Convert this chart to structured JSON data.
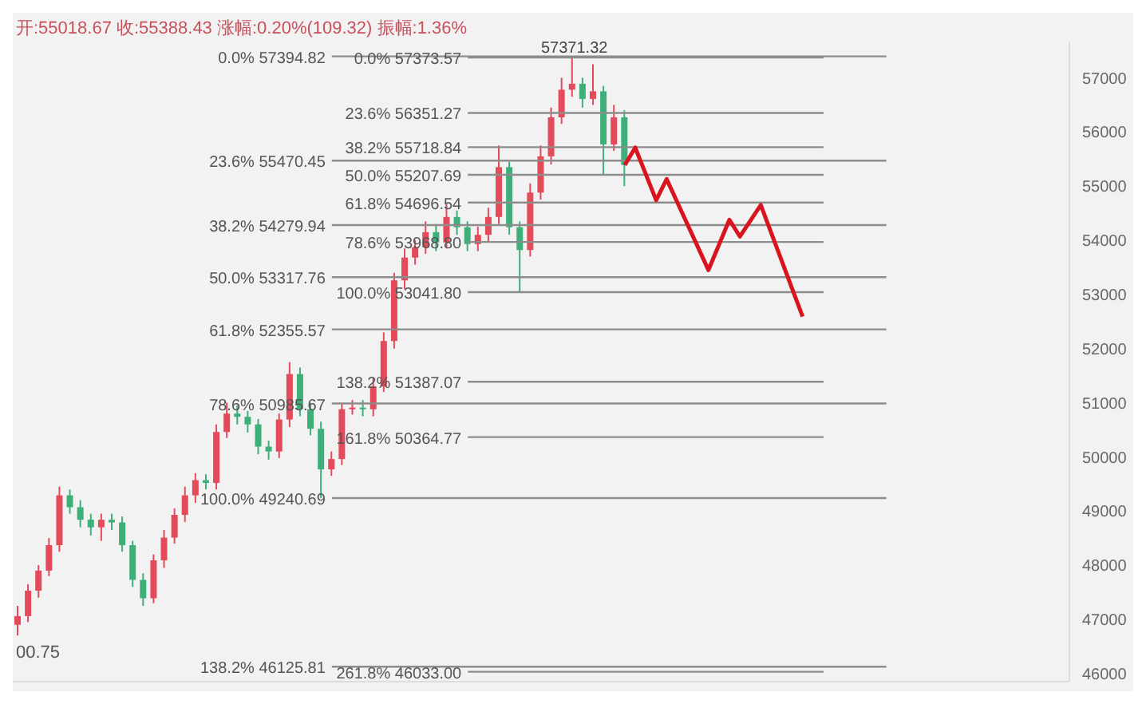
{
  "chart_data": {
    "type": "candlestick",
    "annotations": [
      "开:55018.67 收:55388.43 涨幅:0.20%(109.32) 振幅:1.36%",
      {
        "text": "57371.32",
        "y": 57371.32
      },
      "00.75"
    ],
    "categories": [
      null,
      null,
      null,
      null,
      null,
      null,
      null,
      null,
      null,
      null,
      null,
      null,
      null,
      null,
      null,
      null,
      null,
      null,
      null,
      null,
      null,
      null,
      null,
      null,
      null,
      null,
      null,
      null,
      null,
      null,
      null,
      null,
      null,
      null,
      null,
      null,
      null,
      null,
      null,
      null,
      null,
      null,
      null,
      null,
      null,
      null,
      null,
      null,
      null,
      null,
      null,
      null,
      null,
      null,
      null,
      null,
      null,
      null,
      null,
      null,
      null,
      null,
      null,
      null,
      null,
      null,
      null,
      null,
      null,
      null,
      null,
      null,
      null,
      null,
      null,
      null,
      null,
      null,
      null,
      null,
      null,
      null,
      null,
      null,
      null,
      null,
      null,
      null,
      null,
      null,
      null,
      null,
      null,
      null,
      null,
      null,
      null,
      null,
      null,
      null,
      null
    ],
    "ohlc": [
      [
        46900,
        47250,
        46700,
        47060
      ],
      [
        47060,
        47650,
        46950,
        47530
      ],
      [
        47530,
        48000,
        47400,
        47900
      ],
      [
        47900,
        48500,
        47800,
        48370
      ],
      [
        48370,
        49450,
        48250,
        49290
      ],
      [
        49290,
        49400,
        48950,
        49070
      ],
      [
        49070,
        49200,
        48700,
        48840
      ],
      [
        48840,
        48950,
        48550,
        48700
      ],
      [
        48700,
        48950,
        48450,
        48840
      ],
      [
        48840,
        48950,
        48650,
        48790
      ],
      [
        48790,
        48900,
        48250,
        48370
      ],
      [
        48370,
        48450,
        47600,
        47730
      ],
      [
        47730,
        47850,
        47250,
        47390
      ],
      [
        47390,
        48200,
        47300,
        48090
      ],
      [
        48090,
        48650,
        47950,
        48510
      ],
      [
        48510,
        49050,
        48400,
        48930
      ],
      [
        48930,
        49450,
        48800,
        49290
      ],
      [
        49290,
        49700,
        49150,
        49570
      ],
      [
        49570,
        49680,
        49400,
        49520
      ],
      [
        49520,
        50600,
        49400,
        50460
      ],
      [
        50460,
        51000,
        50350,
        50800
      ],
      [
        50800,
        50950,
        50600,
        50740
      ],
      [
        50740,
        50850,
        50450,
        50600
      ],
      [
        50600,
        50700,
        50050,
        50190
      ],
      [
        50190,
        50300,
        49950,
        50100
      ],
      [
        50100,
        50800,
        49980,
        50690
      ],
      [
        50690,
        51750,
        50550,
        51530
      ],
      [
        51530,
        51650,
        50750,
        50880
      ],
      [
        50880,
        51000,
        50400,
        50520
      ],
      [
        50520,
        50650,
        49240.69,
        49770
      ],
      [
        49770,
        50100,
        49650,
        49960
      ],
      [
        49960,
        51000,
        49850,
        50880
      ],
      [
        50880,
        51050,
        50780,
        50910
      ],
      [
        50910,
        51050,
        50750,
        50880
      ],
      [
        50880,
        51450,
        50750,
        51300
      ],
      [
        51300,
        52300,
        51200,
        52140
      ],
      [
        52140,
        53400,
        52000,
        53260
      ],
      [
        53260,
        53850,
        53100,
        53680
      ],
      [
        53680,
        54000,
        53550,
        53870
      ],
      [
        53870,
        54350,
        53750,
        54150
      ],
      [
        54150,
        54300,
        53800,
        53960
      ],
      [
        53960,
        54700,
        53850,
        54430
      ],
      [
        54430,
        54550,
        54100,
        54240
      ],
      [
        54240,
        54350,
        53800,
        53930
      ],
      [
        53930,
        54250,
        53800,
        54100
      ],
      [
        54100,
        54600,
        53980,
        54430
      ],
      [
        54430,
        55750,
        54300,
        55350
      ],
      [
        55350,
        55450,
        54100,
        54240
      ],
      [
        54240,
        54350,
        53041.8,
        53820
      ],
      [
        53820,
        55050,
        53700,
        54880
      ],
      [
        54880,
        55750,
        54750,
        55550
      ],
      [
        55550,
        56450,
        55400,
        56270
      ],
      [
        56270,
        57000,
        56150,
        56780
      ],
      [
        56780,
        57371.32,
        56650,
        56890
      ],
      [
        56890,
        57000,
        56450,
        56610
      ],
      [
        56610,
        57250,
        56500,
        56750
      ],
      [
        56750,
        56850,
        55200,
        55770
      ],
      [
        55770,
        56500,
        55650,
        56270
      ],
      [
        56270,
        56400,
        55000,
        55390
      ],
      null,
      null,
      null,
      null,
      null,
      null,
      null,
      null,
      null,
      null,
      null,
      null,
      null,
      null,
      null,
      null,
      null,
      null,
      null,
      null,
      null,
      null,
      null,
      null,
      null,
      null,
      null,
      null,
      null,
      null,
      null,
      null,
      null,
      null,
      null,
      null,
      null,
      null,
      null,
      null,
      null,
      null
    ],
    "colors": [
      "#e34a5a",
      "#e34a5a",
      "#e34a5a",
      "#e34a5a",
      "#e34a5a",
      "#3db07a",
      "#3db07a",
      "#3db07a",
      "#e34a5a",
      "#3db07a",
      "#3db07a",
      "#3db07a",
      "#3db07a",
      "#e34a5a",
      "#e34a5a",
      "#e34a5a",
      "#e34a5a",
      "#e34a5a",
      "#3db07a",
      "#e34a5a",
      "#e34a5a",
      "#3db07a",
      "#3db07a",
      "#3db07a",
      "#3db07a",
      "#e34a5a",
      "#e34a5a",
      "#3db07a",
      "#3db07a",
      "#3db07a",
      "#e34a5a",
      "#e34a5a",
      "#e34a5a",
      "#3db07a",
      "#e34a5a",
      "#e34a5a",
      "#e34a5a",
      "#e34a5a",
      "#e34a5a",
      "#e34a5a",
      "#3db07a",
      "#e34a5a",
      "#3db07a",
      "#3db07a",
      "#e34a5a",
      "#e34a5a",
      "#e34a5a",
      "#3db07a",
      "#3db07a",
      "#e34a5a",
      "#e34a5a",
      "#e34a5a",
      "#e34a5a",
      "#e34a5a",
      "#3db07a",
      "#e34a5a",
      "#3db07a",
      "#e34a5a",
      "#3db07a",
      null,
      null,
      null,
      null,
      null,
      null,
      null,
      null,
      null,
      null,
      null,
      null,
      null,
      null,
      null,
      null,
      null,
      null,
      null,
      null,
      null,
      null,
      null,
      null,
      null,
      null,
      null,
      null,
      null,
      null,
      null,
      null,
      null,
      null,
      null,
      null,
      null,
      null,
      null,
      null,
      null,
      null
    ],
    "series": [
      {
        "type": "line",
        "color": "#d9141e",
        "values": [
          null,
          null,
          null,
          null,
          null,
          null,
          null,
          null,
          null,
          null,
          null,
          null,
          null,
          null,
          null,
          null,
          null,
          null,
          null,
          null,
          null,
          null,
          null,
          null,
          null,
          null,
          null,
          null,
          null,
          null,
          null,
          null,
          null,
          null,
          null,
          null,
          null,
          null,
          null,
          null,
          null,
          null,
          null,
          null,
          null,
          null,
          null,
          null,
          null,
          null,
          null,
          null,
          null,
          null,
          null,
          null,
          null,
          null,
          55390,
          55710,
          null,
          54740,
          55130,
          null,
          null,
          null,
          53450,
          null,
          54380,
          54070,
          null,
          54650,
          null,
          null,
          null,
          52590,
          null,
          null,
          null,
          null,
          null,
          null,
          null,
          null,
          null,
          null,
          null,
          null,
          null,
          null,
          null,
          null,
          null,
          null,
          null,
          null,
          null,
          null,
          null,
          null,
          null
        ]
      }
    ],
    "ylim": [
      45850,
      57670
    ],
    "yticks": [
      46000,
      47000,
      48000,
      49000,
      50000,
      51000,
      52000,
      53000,
      54000,
      55000,
      56000,
      57000
    ],
    "tick_labels": "y",
    "ref_lines": [
      {
        "axis": "y",
        "value": 57394.82,
        "label": "0.0% 57394.82",
        "color": "#8c8c8c"
      },
      {
        "axis": "y",
        "value": 55470.45,
        "label": "23.6% 55470.45",
        "color": "#8c8c8c"
      },
      {
        "axis": "y",
        "value": 54279.94,
        "label": "38.2% 54279.94",
        "color": "#8c8c8c"
      },
      {
        "axis": "y",
        "value": 53317.76,
        "label": "50.0% 53317.76",
        "color": "#8c8c8c"
      },
      {
        "axis": "y",
        "value": 52355.57,
        "label": "61.8% 52355.57",
        "color": "#8c8c8c"
      },
      {
        "axis": "y",
        "value": 50985.67,
        "label": "78.6% 50985.67",
        "color": "#8c8c8c"
      },
      {
        "axis": "y",
        "value": 49240.69,
        "label": "100.0% 49240.69",
        "color": "#8c8c8c"
      },
      {
        "axis": "y",
        "value": 46125.81,
        "label": "138.2% 46125.81",
        "color": "#8c8c8c"
      },
      {
        "axis": "y",
        "value": 57373.57,
        "label": "0.0% 57373.57",
        "color": "#8c8c8c"
      },
      {
        "axis": "y",
        "value": 56351.27,
        "label": "23.6% 56351.27",
        "color": "#8c8c8c"
      },
      {
        "axis": "y",
        "value": 55718.84,
        "label": "38.2% 55718.84",
        "color": "#8c8c8c"
      },
      {
        "axis": "y",
        "value": 55207.69,
        "label": "50.0% 55207.69",
        "color": "#8c8c8c"
      },
      {
        "axis": "y",
        "value": 54696.54,
        "label": "61.8% 54696.54",
        "color": "#8c8c8c"
      },
      {
        "axis": "y",
        "value": 53968.8,
        "label": "78.6% 53968.80",
        "color": "#8c8c8c"
      },
      {
        "axis": "y",
        "value": 53041.8,
        "label": "100.0% 53041.80",
        "color": "#8c8c8c"
      },
      {
        "axis": "y",
        "value": 51387.07,
        "label": "138.2% 51387.07",
        "color": "#8c8c8c"
      },
      {
        "axis": "y",
        "value": 50364.77,
        "label": "161.8% 50364.77",
        "color": "#8c8c8c"
      },
      {
        "axis": "y",
        "value": 46033,
        "label": "261.8% 46033.00",
        "color": "#8c8c8c"
      }
    ]
  }
}
